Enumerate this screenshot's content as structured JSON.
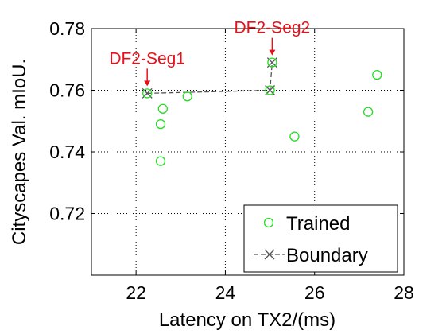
{
  "chart_data": {
    "type": "scatter",
    "xlabel": "Latency on TX2/(ms)",
    "ylabel": "Cityscapes Val. mIoU.",
    "xlim": [
      21,
      28
    ],
    "ylim": [
      0.7,
      0.78
    ],
    "xticks": [
      22,
      24,
      26,
      28
    ],
    "xtick_labels": [
      "22",
      "24",
      "26",
      "28"
    ],
    "yticks": [
      0.72,
      0.74,
      0.76,
      0.78
    ],
    "ytick_labels": [
      "0.72",
      "0.74",
      "0.76",
      "0.78"
    ],
    "grid": true,
    "legend_position": "bottom-right",
    "series": [
      {
        "name": "Trained",
        "marker": "circle",
        "color": "#22dd22",
        "points": [
          {
            "x": 22.25,
            "y": 0.759
          },
          {
            "x": 22.6,
            "y": 0.754
          },
          {
            "x": 22.55,
            "y": 0.749
          },
          {
            "x": 22.55,
            "y": 0.737
          },
          {
            "x": 23.15,
            "y": 0.758
          },
          {
            "x": 25.0,
            "y": 0.76
          },
          {
            "x": 25.05,
            "y": 0.769
          },
          {
            "x": 25.55,
            "y": 0.745
          },
          {
            "x": 27.2,
            "y": 0.753
          },
          {
            "x": 27.4,
            "y": 0.765
          }
        ]
      },
      {
        "name": "Boundary",
        "marker": "x",
        "line": "dashed",
        "color": "#555555",
        "points": [
          {
            "x": 22.25,
            "y": 0.759
          },
          {
            "x": 25.0,
            "y": 0.76
          },
          {
            "x": 25.05,
            "y": 0.769
          }
        ]
      }
    ],
    "annotations": [
      {
        "text": "DF2-Seg1",
        "x": 22.25,
        "y": 0.759,
        "color": "#e8101a"
      },
      {
        "text": "DF2-Seg2",
        "x": 25.05,
        "y": 0.769,
        "color": "#e8101a"
      }
    ]
  }
}
